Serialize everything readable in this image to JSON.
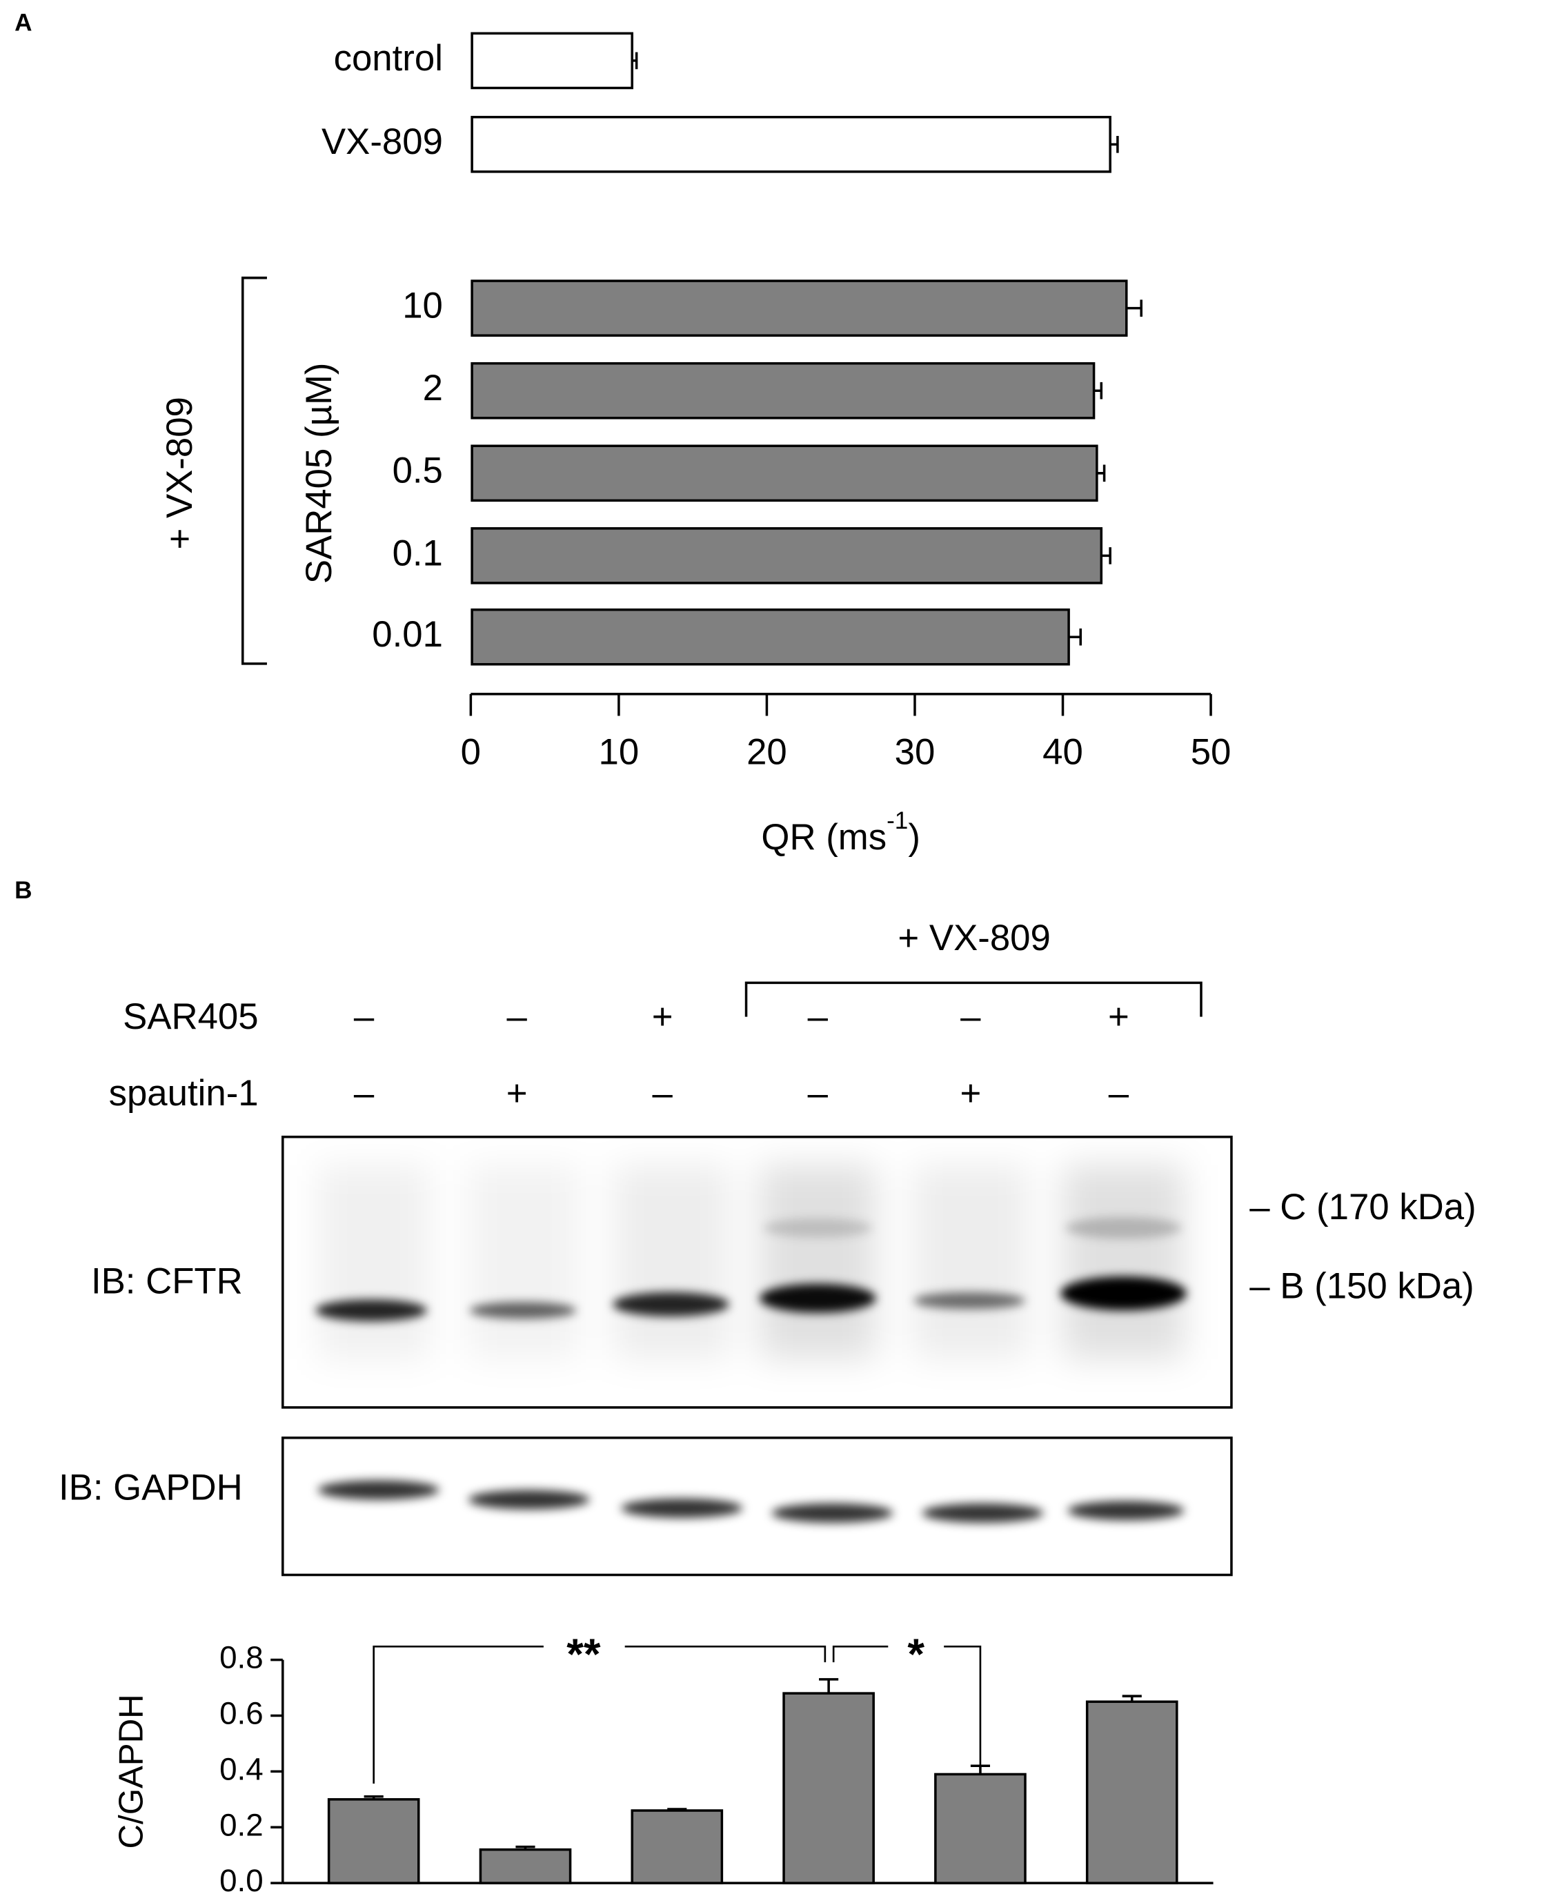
{
  "chart_data": [
    {
      "type": "hbar",
      "panel": "A",
      "categories": [
        "control",
        "VX-809",
        "10",
        "2",
        "0.5",
        "0.1",
        "0.01"
      ],
      "values": [
        10.9,
        43.2,
        44.3,
        42.1,
        42.3,
        42.6,
        40.4
      ],
      "errors": [
        0.3,
        0.5,
        1.0,
        0.5,
        0.5,
        0.6,
        0.8
      ],
      "colors": [
        "#ffffff",
        "#ffffff",
        "#808080",
        "#808080",
        "#808080",
        "#808080",
        "#808080"
      ],
      "group_label": "+ VX-809",
      "sub_group_label": "SAR405 (µM)",
      "xlabel": [
        "QR (ms",
        "-1",
        ")"
      ],
      "xlim": [
        0,
        50
      ],
      "xticks": [
        0,
        10,
        20,
        30,
        40,
        50
      ]
    },
    {
      "type": "bar",
      "ylabel": "C/GAPDH",
      "values": [
        0.3,
        0.12,
        0.26,
        0.68,
        0.39,
        0.65
      ],
      "errors": [
        0.01,
        0.01,
        0.005,
        0.05,
        0.03,
        0.02
      ],
      "color": "#808080",
      "ylim": [
        0,
        0.8
      ],
      "yticks": [
        {
          "value": 0,
          "label": "0.0"
        },
        0.2,
        0.4,
        0.6,
        0.8
      ],
      "annotations": [
        "**",
        "*"
      ]
    }
  ],
  "blot": {
    "panel": "B",
    "group_label": "+ VX-809",
    "row_labels": [
      "SAR405",
      "spautin-1"
    ],
    "signs": [
      [
        "–",
        "–",
        "+",
        "–",
        "–",
        "+"
      ],
      [
        "–",
        "+",
        "–",
        "–",
        "+",
        "–"
      ]
    ],
    "blot_labels": [
      "IB: CFTR",
      "IB: GAPDH"
    ],
    "band_labels": [
      "– C (170 kDa)",
      "– B (150 kDa)"
    ]
  }
}
